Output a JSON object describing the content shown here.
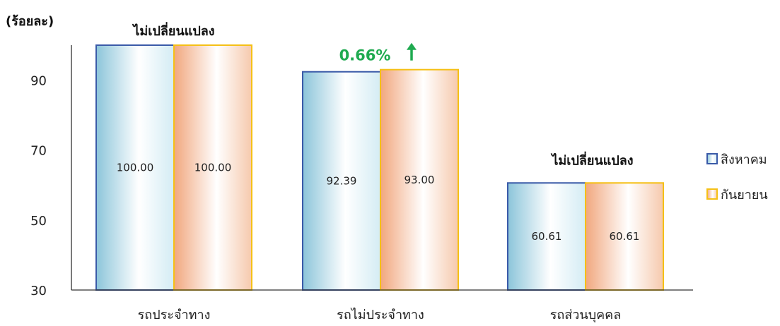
{
  "chart_data": {
    "type": "bar",
    "unit_label": "(ร้อยละ)",
    "categories": [
      "รถประจำทาง",
      "รถไม่ประจำทาง",
      "รถส่วนบุคคล"
    ],
    "series": [
      {
        "name": "สิงหาคม",
        "values": [
          100.0,
          92.39,
          60.61
        ],
        "labels": [
          "100.00",
          "92.39",
          "60.61"
        ],
        "fill": "#a9d3e3",
        "stroke": "#3a5aa8"
      },
      {
        "name": "กันยายน",
        "values": [
          100.0,
          93.0,
          60.61
        ],
        "labels": [
          "100.00",
          "93.00",
          "60.61"
        ],
        "fill": "#f2b38c",
        "stroke": "#f5c016"
      }
    ],
    "ylim": [
      30,
      100
    ],
    "yticks": [
      30,
      50,
      70,
      90
    ],
    "grid": false,
    "legend": "right",
    "annotations": [
      {
        "category": 0,
        "text": "ไม่เปลี่ยนแปลง",
        "color": "#111111"
      },
      {
        "category": 1,
        "text": "0.66%",
        "color": "#1faa50",
        "arrow": "up"
      },
      {
        "category": 2,
        "text": "ไม่เปลี่ยนแปลง",
        "color": "#111111"
      }
    ]
  }
}
